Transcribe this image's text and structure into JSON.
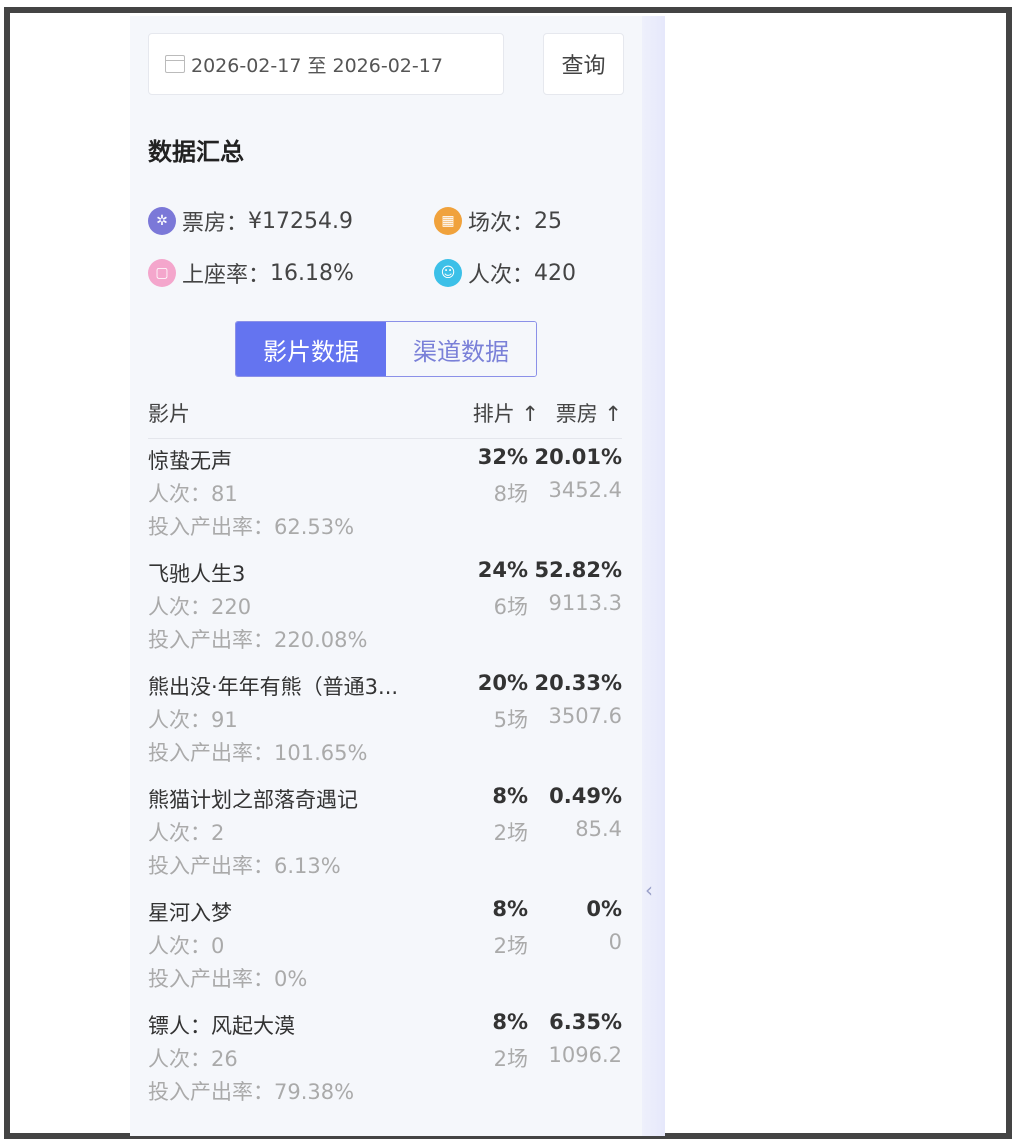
{
  "date_range": {
    "value": "2026-02-17 至 2026-02-17"
  },
  "query_label": "查询",
  "summary_title": "数据汇总",
  "stats": [
    {
      "label": "票房：",
      "value": "¥17254.9",
      "icon": "film-reel-icon",
      "color": "#7b78d8"
    },
    {
      "label": "场次：",
      "value": "25",
      "icon": "calendar-icon",
      "color": "#f0a23c"
    },
    {
      "label": "上座率：",
      "value": "16.18%",
      "icon": "seat-icon",
      "color": "#f4a6cc"
    },
    {
      "label": "人次：",
      "value": "420",
      "icon": "users-icon",
      "color": "#3cc0e8"
    }
  ],
  "tabs": [
    "影片数据",
    "渠道数据"
  ],
  "table": {
    "col_film": "影片",
    "col_share": "排片 ↑",
    "col_box": "票房 ↑"
  },
  "films": [
    {
      "name": "惊蛰无声",
      "share": "32%",
      "box_pct": "20.01%",
      "people": "人次：81",
      "shows": "8场",
      "box": "3452.4",
      "roi": "投入产出率：62.53%"
    },
    {
      "name": "飞驰人生3",
      "share": "24%",
      "box_pct": "52.82%",
      "people": "人次：220",
      "shows": "6场",
      "box": "9113.3",
      "roi": "投入产出率：220.08%"
    },
    {
      "name": "熊出没·年年有熊（普通3...",
      "share": "20%",
      "box_pct": "20.33%",
      "people": "人次：91",
      "shows": "5场",
      "box": "3507.6",
      "roi": "投入产出率：101.65%"
    },
    {
      "name": "熊猫计划之部落奇遇记",
      "share": "8%",
      "box_pct": "0.49%",
      "people": "人次：2",
      "shows": "2场",
      "box": "85.4",
      "roi": "投入产出率：6.13%"
    },
    {
      "name": "星河入梦",
      "share": "8%",
      "box_pct": "0%",
      "people": "人次：0",
      "shows": "2场",
      "box": "0",
      "roi": "投入产出率：0%"
    },
    {
      "name": "镖人：风起大漠",
      "share": "8%",
      "box_pct": "6.35%",
      "people": "人次：26",
      "shows": "2场",
      "box": "1096.2",
      "roi": "投入产出率：79.38%"
    }
  ]
}
